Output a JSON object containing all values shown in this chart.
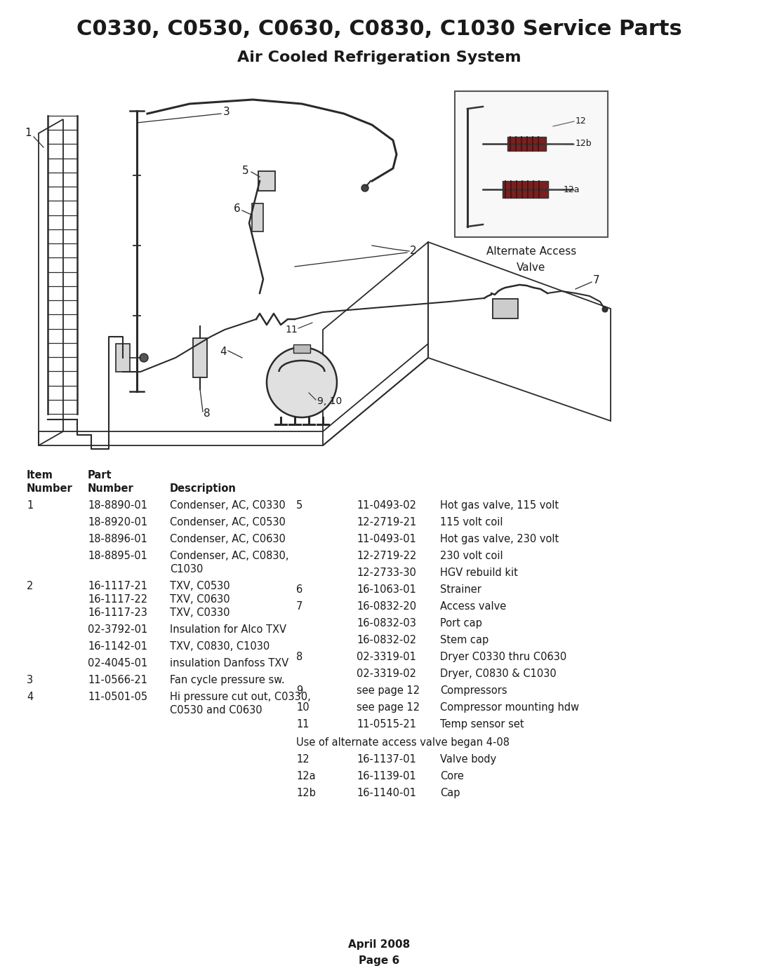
{
  "title": "C0330, C0530, C0630, C0830, C1030 Service Parts",
  "subtitle": "Air Cooled Refrigeration System",
  "bg_color": "#ffffff",
  "title_fontsize": 22,
  "subtitle_fontsize": 16,
  "footer": "April 2008\nPage 6",
  "alt_valve_label": "Alternate Access\nValve"
}
